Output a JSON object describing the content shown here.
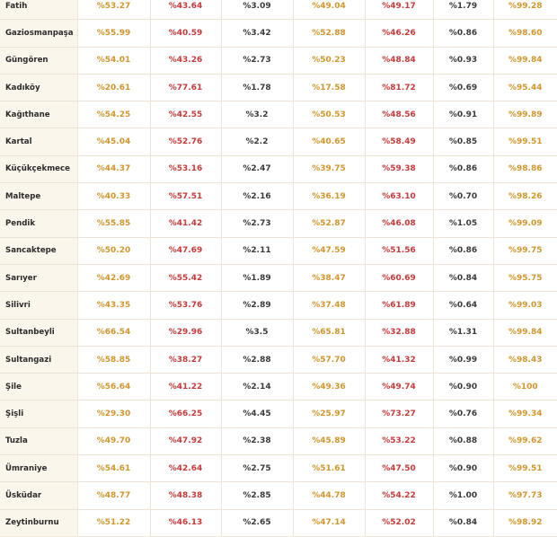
{
  "table": {
    "colors": {
      "gold": "#d1962e",
      "red": "#c73a3a",
      "dark": "#3a3a3a",
      "row_header_bg": "#fbf6ec",
      "grid_line": "#ece4d4"
    },
    "rows": [
      {
        "district": "Fatih",
        "v1": "%53.27",
        "v2": "%43.64",
        "v3": "%3.09",
        "v4": "%49.04",
        "v5": "%49.17",
        "v6": "%1.79",
        "v7": "%99.28"
      },
      {
        "district": "Gaziosmanpaşa",
        "v1": "%55.99",
        "v2": "%40.59",
        "v3": "%3.42",
        "v4": "%52.88",
        "v5": "%46.26",
        "v6": "%0.86",
        "v7": "%98.60"
      },
      {
        "district": "Güngören",
        "v1": "%54.01",
        "v2": "%43.26",
        "v3": "%2.73",
        "v4": "%50.23",
        "v5": "%48.84",
        "v6": "%0.93",
        "v7": "%99.84"
      },
      {
        "district": "Kadıköy",
        "v1": "%20.61",
        "v2": "%77.61",
        "v3": "%1.78",
        "v4": "%17.58",
        "v5": "%81.72",
        "v6": "%0.69",
        "v7": "%95.44"
      },
      {
        "district": "Kağıthane",
        "v1": "%54.25",
        "v2": "%42.55",
        "v3": "%3.2",
        "v4": "%50.53",
        "v5": "%48.56",
        "v6": "%0.91",
        "v7": "%99.89"
      },
      {
        "district": "Kartal",
        "v1": "%45.04",
        "v2": "%52.76",
        "v3": "%2.2",
        "v4": "%40.65",
        "v5": "%58.49",
        "v6": "%0.85",
        "v7": "%99.51"
      },
      {
        "district": "Küçükçekmece",
        "v1": "%44.37",
        "v2": "%53.16",
        "v3": "%2.47",
        "v4": "%39.75",
        "v5": "%59.38",
        "v6": "%0.86",
        "v7": "%98.86"
      },
      {
        "district": "Maltepe",
        "v1": "%40.33",
        "v2": "%57.51",
        "v3": "%2.16",
        "v4": "%36.19",
        "v5": "%63.10",
        "v6": "%0.70",
        "v7": "%98.26"
      },
      {
        "district": "Pendik",
        "v1": "%55.85",
        "v2": "%41.42",
        "v3": "%2.73",
        "v4": "%52.87",
        "v5": "%46.08",
        "v6": "%1.05",
        "v7": "%99.09"
      },
      {
        "district": "Sancaktepe",
        "v1": "%50.20",
        "v2": "%47.69",
        "v3": "%2.11",
        "v4": "%47.59",
        "v5": "%51.56",
        "v6": "%0.86",
        "v7": "%99.75"
      },
      {
        "district": "Sarıyer",
        "v1": "%42.69",
        "v2": "%55.42",
        "v3": "%1.89",
        "v4": "%38.47",
        "v5": "%60.69",
        "v6": "%0.84",
        "v7": "%95.75"
      },
      {
        "district": "Silivri",
        "v1": "%43.35",
        "v2": "%53.76",
        "v3": "%2.89",
        "v4": "%37.48",
        "v5": "%61.89",
        "v6": "%0.64",
        "v7": "%99.03"
      },
      {
        "district": "Sultanbeyli",
        "v1": "%66.54",
        "v2": "%29.96",
        "v3": "%3.5",
        "v4": "%65.81",
        "v5": "%32.88",
        "v6": "%1.31",
        "v7": "%99.84"
      },
      {
        "district": "Sultangazi",
        "v1": "%58.85",
        "v2": "%38.27",
        "v3": "%2.88",
        "v4": "%57.70",
        "v5": "%41.32",
        "v6": "%0.99",
        "v7": "%98.43"
      },
      {
        "district": "Şile",
        "v1": "%56.64",
        "v2": "%41.22",
        "v3": "%2.14",
        "v4": "%49.36",
        "v5": "%49.74",
        "v6": "%0.90",
        "v7": "%100"
      },
      {
        "district": "Şişli",
        "v1": "%29.30",
        "v2": "%66.25",
        "v3": "%4.45",
        "v4": "%25.97",
        "v5": "%73.27",
        "v6": "%0.76",
        "v7": "%99.34"
      },
      {
        "district": "Tuzla",
        "v1": "%49.70",
        "v2": "%47.92",
        "v3": "%2.38",
        "v4": "%45.89",
        "v5": "%53.22",
        "v6": "%0.88",
        "v7": "%99.62"
      },
      {
        "district": "Ümraniye",
        "v1": "%54.61",
        "v2": "%42.64",
        "v3": "%2.75",
        "v4": "%51.61",
        "v5": "%47.50",
        "v6": "%0.90",
        "v7": "%99.51"
      },
      {
        "district": "Üsküdar",
        "v1": "%48.77",
        "v2": "%48.38",
        "v3": "%2.85",
        "v4": "%44.78",
        "v5": "%54.22",
        "v6": "%1.00",
        "v7": "%97.73"
      },
      {
        "district": "Zeytinburnu",
        "v1": "%51.22",
        "v2": "%46.13",
        "v3": "%2.65",
        "v4": "%47.14",
        "v5": "%52.02",
        "v6": "%0.84",
        "v7": "%98.92"
      }
    ]
  }
}
